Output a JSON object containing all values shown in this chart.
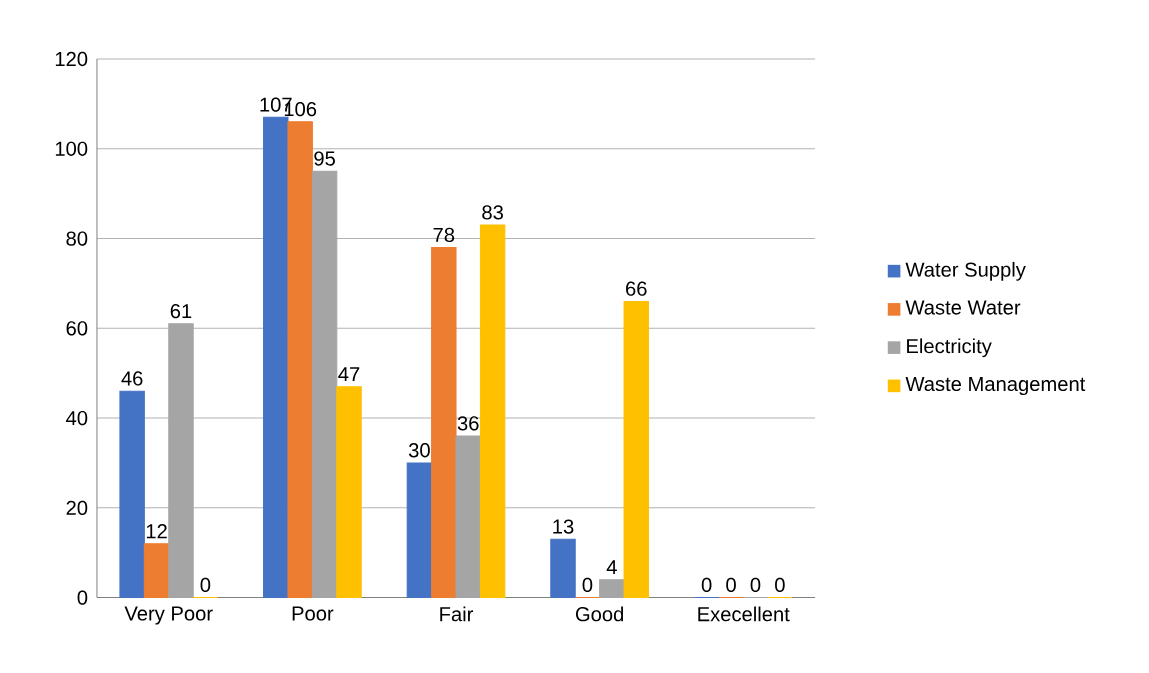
{
  "chart_data": {
    "type": "bar",
    "categories": [
      "Very Poor",
      "Poor",
      "Fair",
      "Good",
      "Execellent"
    ],
    "series": [
      {
        "name": "Water Supply",
        "color": "#4472c4",
        "values": [
          46,
          107,
          30,
          13,
          0
        ]
      },
      {
        "name": "Waste Water",
        "color": "#ed7d31",
        "values": [
          12,
          106,
          78,
          0,
          0
        ]
      },
      {
        "name": "Electricity",
        "color": "#a5a5a5",
        "values": [
          61,
          95,
          36,
          4,
          0
        ]
      },
      {
        "name": "Waste Management",
        "color": "#ffc000",
        "values": [
          0,
          47,
          83,
          66,
          0
        ]
      }
    ],
    "ylim": [
      0,
      120
    ],
    "yticks": [
      0,
      20,
      40,
      60,
      80,
      100,
      120
    ],
    "grid": "y",
    "legend": "right",
    "data_labels": true
  }
}
